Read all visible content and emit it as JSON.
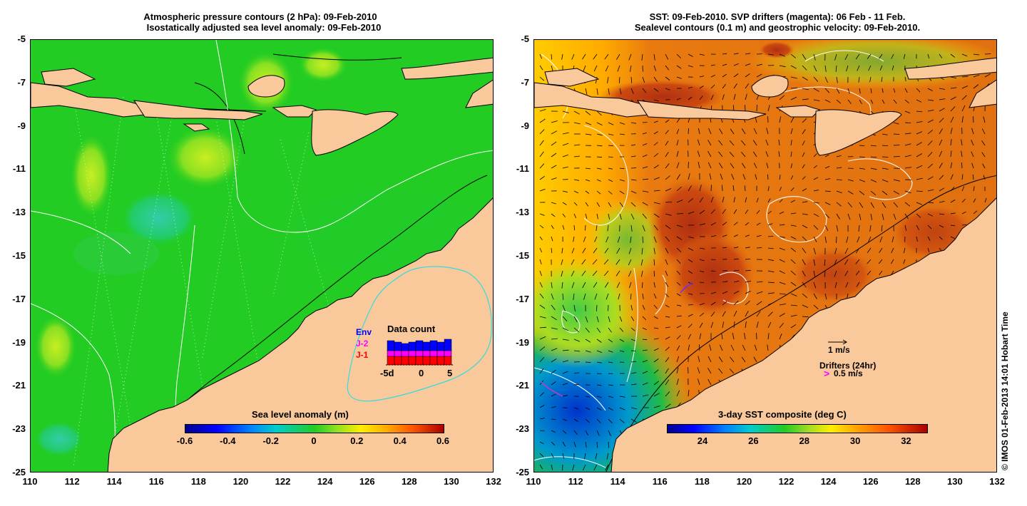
{
  "left_panel": {
    "title_line1": "Atmospheric pressure contours (2 hPa): 09-Feb-2010",
    "title_line2": "Isostatically adjusted sea level anomaly: 09-Feb-2010",
    "y_ticks": [
      "-5",
      "-7",
      "-9",
      "-11",
      "-13",
      "-15",
      "-17",
      "-19",
      "-21",
      "-23",
      "-25"
    ],
    "x_ticks": [
      "110",
      "112",
      "114",
      "116",
      "118",
      "120",
      "122",
      "124",
      "126",
      "128",
      "130",
      "132"
    ],
    "colorbar": {
      "title": "Sea level anomaly (m)",
      "labels": [
        "-0.6",
        "-0.4",
        "-0.2",
        "0",
        "0.2",
        "0.4",
        "0.6"
      ],
      "range": [
        -0.6,
        0.6
      ]
    },
    "inset": {
      "title": "Data count",
      "legend": [
        {
          "label": "Env",
          "color": "#0000ff"
        },
        {
          "label": "J-2",
          "color": "#ff00ff"
        },
        {
          "label": "J-1",
          "color": "#ff0000"
        }
      ],
      "x_labels": [
        "-5d",
        "0",
        "5"
      ]
    }
  },
  "right_panel": {
    "title_line1": "SST: 09-Feb-2010. SVP drifters (magenta): 06 Feb - 11 Feb.",
    "title_line2": "Sealevel contours (0.1 m) and geostrophic velocity: 09-Feb-2010.",
    "y_ticks": [
      "-5",
      "-7",
      "-9",
      "-11",
      "-13",
      "-15",
      "-17",
      "-19",
      "-21",
      "-23",
      "-25"
    ],
    "x_ticks": [
      "110",
      "112",
      "114",
      "116",
      "118",
      "120",
      "122",
      "124",
      "126",
      "128",
      "130",
      "132"
    ],
    "colorbar": {
      "title": "3-day SST composite (deg C)",
      "labels": [
        "24",
        "26",
        "28",
        "30",
        "32"
      ],
      "range": [
        22.6,
        32.8
      ]
    },
    "velocity_legend": "1 m/s",
    "drifter_legend_title": "Drifters (24hr)",
    "drifter_legend_value": "0.5 m/s",
    "drifter_marker": ">"
  },
  "credit": "© IMOS 01-Feb-2013 14:01 Hobart Time",
  "colors": {
    "land": "#f9c89b",
    "ocean_sla": "#22cc22",
    "sst_warm": "#e06a10"
  }
}
